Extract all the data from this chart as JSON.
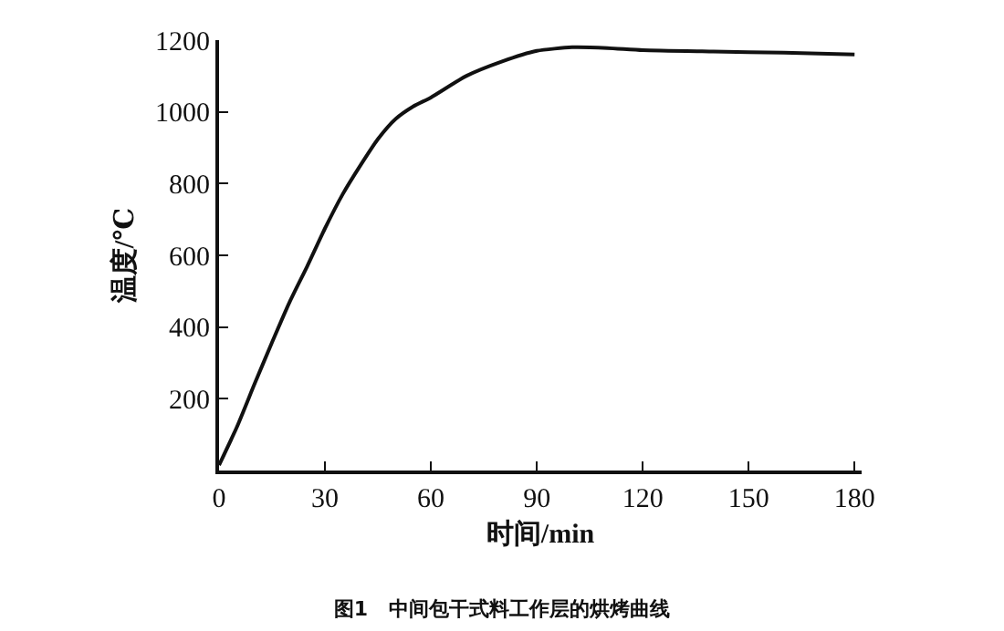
{
  "chart_data": {
    "type": "line",
    "title": "图1   中间包干式料工作层的烘烤曲线",
    "xlabel": "时间/min",
    "ylabel": "温度/℃",
    "x": [
      0,
      5,
      10,
      15,
      20,
      25,
      30,
      35,
      40,
      45,
      50,
      55,
      60,
      70,
      80,
      90,
      100,
      110,
      120,
      140,
      160,
      180
    ],
    "series": [
      {
        "color": "#111111",
        "values": [
          15,
          120,
          240,
          357,
          470,
          570,
          675,
          770,
          850,
          924,
          980,
          1015,
          1040,
          1100,
          1140,
          1170,
          1180,
          1178,
          1172,
          1168,
          1165,
          1160
        ]
      }
    ],
    "xlim": [
      0,
      182
    ],
    "ylim": [
      0,
      1200
    ],
    "xticks": [
      0,
      30,
      60,
      90,
      120,
      150,
      180
    ],
    "yticks": [
      200,
      400,
      600,
      800,
      1000,
      1200
    ],
    "grid": false,
    "legend": false,
    "marker": "none",
    "line_style": "solid"
  }
}
